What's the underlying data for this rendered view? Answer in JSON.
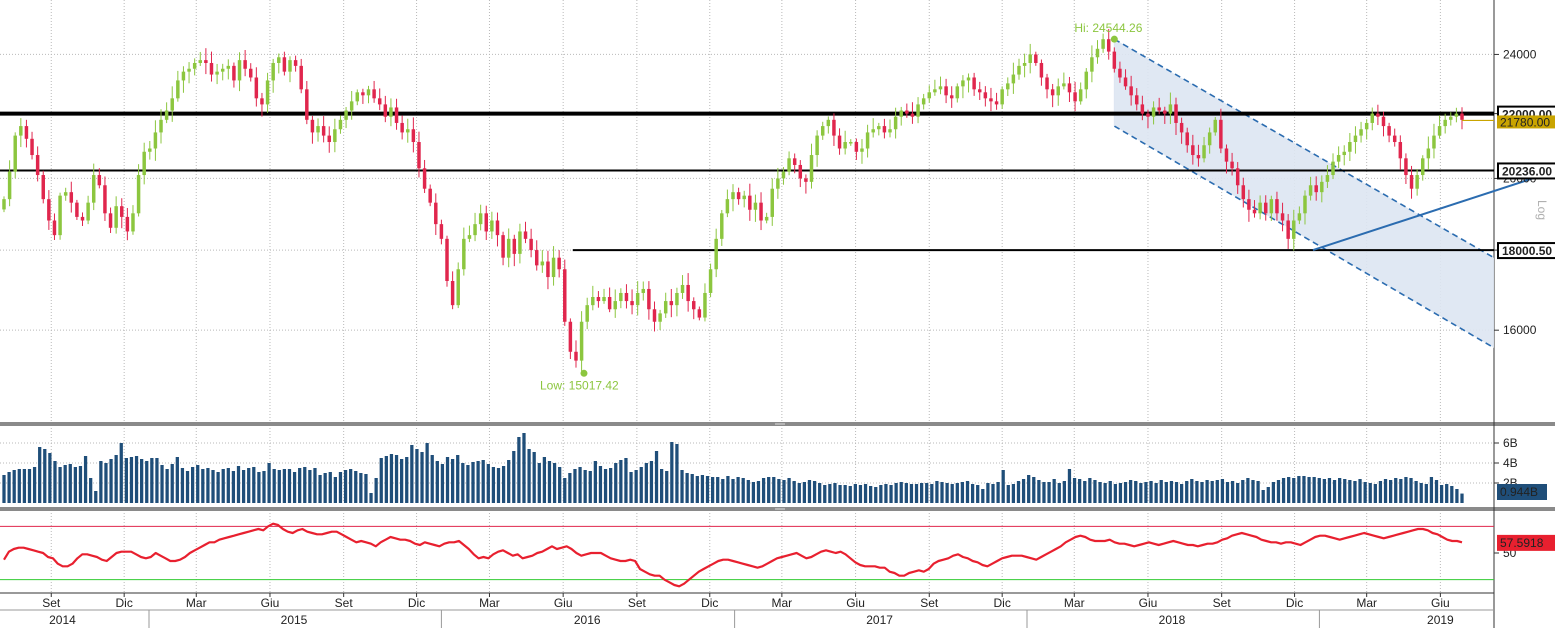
{
  "chart_data": [
    {
      "type": "candlestick",
      "title": "",
      "scale": "log",
      "scale_label": "Log",
      "ylim": [
        14000,
        26000
      ],
      "y_ticks": [
        16000,
        18000,
        20000,
        22000,
        24000
      ],
      "y_tick_labels": [
        "16000",
        "",
        "20000",
        "",
        "24000"
      ],
      "price_levels": [
        {
          "value": 22000.0,
          "label": "22000.00",
          "style": "heavy"
        },
        {
          "value": 20236.0,
          "label": "20236.00",
          "style": "normal"
        },
        {
          "value": 18000.5,
          "label": "18000.50",
          "style": "normal"
        }
      ],
      "last_value": {
        "value": 21780,
        "label": "21780.00"
      },
      "annotations": [
        {
          "label": "Hi: 24544.26",
          "date": "2018-04-20",
          "value": 24544.26
        },
        {
          "label": "Low: 15017.42",
          "date": "2016-06-27",
          "value": 15017.42
        }
      ],
      "colors": {
        "up": "#8cc63f",
        "down": "#e0264d",
        "channel": "#2b6cb0",
        "channel_fill": "#dde6f2",
        "highlow": "#8cc63f"
      },
      "trend_channel": {
        "upper": [
          {
            "date": "2018-04-20",
            "value": 24544.26
          },
          {
            "date": "2019-12-31",
            "value": 16120
          }
        ],
        "lower": [
          {
            "date": "2018-04-20",
            "value": 21600
          },
          {
            "date": "2019-12-31",
            "value": 14100
          }
        ]
      },
      "trendline": [
        {
          "date": "2018-12-24",
          "value": 18000
        },
        {
          "date": "2019-12-10",
          "value": 20600
        }
      ],
      "start_date": "2014-07-04",
      "closes": [
        19400,
        20200,
        21300,
        21600,
        21200,
        20700,
        20100,
        19400,
        18800,
        18400,
        19500,
        19600,
        19300,
        18900,
        18800,
        19300,
        20100,
        19800,
        19000,
        18600,
        19200,
        18900,
        18500,
        19000,
        20100,
        20800,
        20900,
        21400,
        21800,
        22100,
        22500,
        23100,
        23400,
        23500,
        23700,
        23800,
        23700,
        23300,
        23400,
        23500,
        23600,
        23100,
        23800,
        23500,
        23200,
        22500,
        22300,
        23100,
        23700,
        23900,
        23400,
        23800,
        23600,
        22800,
        21800,
        21400,
        21600,
        21300,
        21100,
        21500,
        21800,
        22100,
        22400,
        22700,
        22600,
        22800,
        22500,
        22300,
        21900,
        22200,
        21700,
        21400,
        21500,
        21100,
        20300,
        19700,
        19300,
        18700,
        18300,
        17200,
        16600,
        17500,
        18300,
        18400,
        18700,
        19000,
        18500,
        18800,
        18400,
        17800,
        18300,
        17900,
        18500,
        18300,
        18000,
        17600,
        17700,
        17300,
        17800,
        17500,
        16200,
        15500,
        15300,
        16200,
        16600,
        16800,
        16700,
        16800,
        16500,
        16700,
        16900,
        16700,
        16600,
        16900,
        17000,
        16500,
        16200,
        16400,
        16700,
        16600,
        16900,
        17100,
        16700,
        16500,
        16300,
        16900,
        17500,
        18300,
        19000,
        19400,
        19600,
        19400,
        19500,
        19100,
        19300,
        18800,
        18900,
        19700,
        20000,
        20200,
        20600,
        20400,
        20000,
        19900,
        20700,
        21300,
        21600,
        21800,
        21300,
        20900,
        21100,
        21100,
        20800,
        20900,
        21400,
        21500,
        21600,
        21400,
        21500,
        21900,
        22100,
        22000,
        21900,
        22300,
        22500,
        22700,
        22800,
        22900,
        22600,
        22500,
        22900,
        23100,
        23200,
        22800,
        22700,
        22500,
        22400,
        22300,
        22800,
        23000,
        23300,
        23600,
        23700,
        24000,
        23700,
        23200,
        22800,
        22600,
        22900,
        23000,
        22700,
        22400,
        22800,
        23400,
        23900,
        24200,
        24544,
        24100,
        23500,
        23200,
        22900,
        22600,
        22300,
        22000,
        21900,
        22200,
        22100,
        22000,
        22300,
        21700,
        21400,
        21000,
        20700,
        20600,
        21000,
        21400,
        21800,
        20900,
        20500,
        20300,
        19800,
        19400,
        19100,
        19000,
        19300,
        19000,
        19400,
        19000,
        18800,
        18300,
        18800,
        19000,
        19500,
        19800,
        19600,
        19900,
        20100,
        20500,
        20700,
        20800,
        21100,
        21300,
        21500,
        21700,
        22000,
        21900,
        21600,
        21300,
        21100,
        20600,
        20100,
        19700,
        20100,
        20600,
        20900,
        21300,
        21600,
        21800,
        21900,
        22000,
        21800
      ],
      "x_ticks": [
        {
          "date": "2014-09-01",
          "label": "Set"
        },
        {
          "date": "2014-12-01",
          "label": "Dic"
        },
        {
          "date": "2015-03-01",
          "label": "Mar"
        },
        {
          "date": "2015-06-01",
          "label": "Giu"
        },
        {
          "date": "2015-09-01",
          "label": "Set"
        },
        {
          "date": "2015-12-01",
          "label": "Dic"
        },
        {
          "date": "2016-03-01",
          "label": "Mar"
        },
        {
          "date": "2016-06-01",
          "label": "Giu"
        },
        {
          "date": "2016-09-01",
          "label": "Set"
        },
        {
          "date": "2016-12-01",
          "label": "Dic"
        },
        {
          "date": "2017-03-01",
          "label": "Mar"
        },
        {
          "date": "2017-06-01",
          "label": "Giu"
        },
        {
          "date": "2017-09-01",
          "label": "Set"
        },
        {
          "date": "2017-12-01",
          "label": "Dic"
        },
        {
          "date": "2018-03-01",
          "label": "Mar"
        },
        {
          "date": "2018-06-01",
          "label": "Giu"
        },
        {
          "date": "2018-09-01",
          "label": "Set"
        },
        {
          "date": "2018-12-01",
          "label": "Dic"
        },
        {
          "date": "2019-03-01",
          "label": "Mar"
        },
        {
          "date": "2019-06-01",
          "label": "Giu"
        }
      ],
      "years": [
        {
          "label": "2014",
          "center": "2014-09-15"
        },
        {
          "label": "2015",
          "center": "2015-07-01"
        },
        {
          "label": "2016",
          "center": "2016-07-01"
        },
        {
          "label": "2017",
          "center": "2017-07-01"
        },
        {
          "label": "2018",
          "center": "2018-07-01"
        },
        {
          "label": "2019",
          "center": "2019-06-01"
        }
      ],
      "year_dividers": [
        "2015-01-01",
        "2016-01-01",
        "2017-01-01",
        "2018-01-01",
        "2019-01-01"
      ]
    },
    {
      "type": "bar",
      "title": "",
      "ylim": [
        0,
        7.5
      ],
      "y_ticks": [
        2,
        4,
        6
      ],
      "y_tick_labels": [
        "2B",
        "4B",
        "6B"
      ],
      "last_value": {
        "value": 0.944,
        "label": "0.944B"
      },
      "color": "#1f4e79",
      "values": [
        2.8,
        3.1,
        3.3,
        3.4,
        3.4,
        3.4,
        3.6,
        5.6,
        5.4,
        5.0,
        4.2,
        3.6,
        3.8,
        3.9,
        3.6,
        3.7,
        4.7,
        2.5,
        1.2,
        4.2,
        4.0,
        4.4,
        4.8,
        6.0,
        4.5,
        4.6,
        4.7,
        4.4,
        4.2,
        4.5,
        4.5,
        3.8,
        3.4,
        3.9,
        4.6,
        3.5,
        3.2,
        3.6,
        3.8,
        3.4,
        3.5,
        3.3,
        3.1,
        3.4,
        3.5,
        3.2,
        3.7,
        3.3,
        3.5,
        3.6,
        3.1,
        3.2,
        4.0,
        3.4,
        3.3,
        3.4,
        3.4,
        3.1,
        3.5,
        3.6,
        3.3,
        3.5,
        2.8,
        3.0,
        3.1,
        2.6,
        3.1,
        3.3,
        3.4,
        3.2,
        3.0,
        2.9,
        1.0,
        2.5,
        4.5,
        4.7,
        4.9,
        4.8,
        4.4,
        4.6,
        5.8,
        5.4,
        5.1,
        6.0,
        4.8,
        4.2,
        3.9,
        4.6,
        4.4,
        4.8,
        4.0,
        3.8,
        4.1,
        4.2,
        4.3,
        3.9,
        3.6,
        3.5,
        3.7,
        4.3,
        5.2,
        6.6,
        7.0,
        5.4,
        5.1,
        4.0,
        4.6,
        4.2,
        4.0,
        3.6,
        2.5,
        3.0,
        3.4,
        3.6,
        3.3,
        3.2,
        4.2,
        3.7,
        3.4,
        3.5,
        4.0,
        4.3,
        4.5,
        3.1,
        3.3,
        3.6,
        4.0,
        4.2,
        5.2,
        3.4,
        3.2,
        6.1,
        5.9,
        3.3,
        3.0,
        2.9,
        2.7,
        2.8,
        2.7,
        2.6,
        2.6,
        2.4,
        2.7,
        2.4,
        2.6,
        2.5,
        2.3,
        2.1,
        2.2,
        2.5,
        2.6,
        2.6,
        2.4,
        2.3,
        2.5,
        2.2,
        2.0,
        2.1,
        2.3,
        2.2,
        2.0,
        1.8,
        1.9,
        2.0,
        1.8,
        1.8,
        1.7,
        1.9,
        1.8,
        1.9,
        1.7,
        1.6,
        1.8,
        1.9,
        1.8,
        2.0,
        2.1,
        2.0,
        1.9,
        1.9,
        2.0,
        2.0,
        1.9,
        2.2,
        2.1,
        2.0,
        1.9,
        2.0,
        2.1,
        2.2,
        1.9,
        1.8,
        1.4,
        2.0,
        1.9,
        2.1,
        3.3,
        1.8,
        1.9,
        2.2,
        2.4,
        2.8,
        2.6,
        2.3,
        2.1,
        2.1,
        2.4,
        2.0,
        2.2,
        3.4,
        2.5,
        2.4,
        2.2,
        2.5,
        2.3,
        2.1,
        2.0,
        2.2,
        1.9,
        2.0,
        2.1,
        2.3,
        2.2,
        2.0,
        2.1,
        2.2,
        2.0,
        2.3,
        2.1,
        2.2,
        2.1,
        1.9,
        2.2,
        2.4,
        2.2,
        2.1,
        2.3,
        2.2,
        2.3,
        2.4,
        2.1,
        2.2,
        2.0,
        2.3,
        2.5,
        2.3,
        2.2,
        1.3,
        1.6,
        2.1,
        2.3,
        2.5,
        2.6,
        2.5,
        2.7,
        2.7,
        2.6,
        2.6,
        2.5,
        2.4,
        2.5,
        2.3,
        2.5,
        2.4,
        2.3,
        2.2,
        2.4,
        2.1,
        2.0,
        1.9,
        2.2,
        2.4,
        2.3,
        2.5,
        2.4,
        2.6,
        2.5,
        2.2,
        2.0,
        1.9,
        2.6,
        2.3,
        1.8,
        1.9,
        1.7,
        1.4,
        0.944
      ]
    },
    {
      "type": "line",
      "title": "",
      "ylim": [
        20,
        80
      ],
      "y_tick_labels": [
        "50"
      ],
      "guide_levels": [
        {
          "value": 70,
          "color": "#e0264d"
        },
        {
          "value": 30,
          "color": "#33cc33"
        }
      ],
      "last_value": {
        "value": 57.5918,
        "label": "57.5918"
      },
      "color": "#e8202f",
      "values": [
        45,
        51,
        53,
        54,
        54,
        53,
        52,
        51,
        50,
        47,
        46,
        42,
        40,
        40,
        42,
        46,
        49,
        49,
        48,
        47,
        45,
        44,
        47,
        50,
        51,
        51,
        51,
        49,
        47,
        46,
        47,
        50,
        48,
        46,
        44,
        44,
        45,
        47,
        50,
        52,
        54,
        56,
        58,
        58,
        60,
        61,
        62,
        63,
        64,
        65,
        66,
        67,
        68,
        67,
        70,
        72,
        71,
        68,
        66,
        65,
        67,
        68,
        66,
        65,
        64,
        64,
        65,
        66,
        66,
        64,
        62,
        60,
        58,
        59,
        58,
        57,
        55,
        58,
        60,
        62,
        61,
        60,
        60,
        59,
        57,
        56,
        58,
        57,
        56,
        55,
        57,
        58,
        58,
        59,
        56,
        53,
        49,
        46,
        47,
        46,
        49,
        51,
        52,
        50,
        48,
        49,
        46,
        47,
        48,
        50,
        51,
        53,
        55,
        53,
        54,
        55,
        53,
        50,
        48,
        49,
        50,
        50,
        50,
        48,
        46,
        45,
        44,
        44,
        45,
        44,
        38,
        36,
        34,
        33,
        33,
        30,
        28,
        26,
        25,
        27,
        30,
        33,
        36,
        38,
        40,
        42,
        44,
        45,
        45,
        44,
        43,
        42,
        41,
        40,
        39,
        40,
        42,
        44,
        46,
        47,
        48,
        49,
        50,
        48,
        46,
        47,
        49,
        51,
        52,
        51,
        50,
        51,
        49,
        46,
        43,
        41,
        40,
        40,
        40,
        39,
        39,
        36,
        35,
        33,
        33,
        35,
        36,
        37,
        36,
        38,
        42,
        44,
        45,
        46,
        48,
        49,
        47,
        46,
        44,
        43,
        41,
        40,
        42,
        44,
        46,
        47,
        48,
        48,
        48,
        47,
        46,
        45,
        47,
        49,
        51,
        53,
        55,
        58,
        60,
        62,
        63,
        62,
        60,
        59,
        59,
        59,
        60,
        58,
        57,
        57,
        56,
        55,
        56,
        57,
        58,
        57,
        56,
        57,
        58,
        59,
        58,
        57,
        56,
        56,
        55,
        56,
        57,
        57,
        58,
        60,
        61,
        63,
        64,
        65,
        64,
        63,
        62,
        60,
        59,
        58,
        58,
        57,
        58,
        58,
        57,
        56,
        58,
        60,
        62,
        63,
        63,
        62,
        61,
        60,
        61,
        62,
        63,
        64,
        65,
        64,
        63,
        62,
        61,
        62,
        63,
        64,
        65,
        66,
        67,
        68,
        68,
        67,
        65,
        64,
        62,
        60,
        59,
        59,
        58
      ]
    }
  ]
}
